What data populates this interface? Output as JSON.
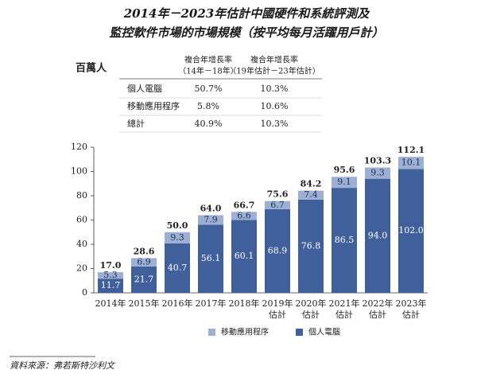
{
  "title": [
    "2014年－2023年估計中國硬件和系統評測及",
    "監控軟件市場的市場規模（按平均每月活躍用戶計）"
  ],
  "unit": "百萬人",
  "table": {
    "header": [
      [
        "複合年增長率",
        "（14年－18年）"
      ],
      [
        "複合年增長率",
        "（19年估計－23年估計）"
      ]
    ],
    "rows": [
      [
        "個人電腦",
        "50.7%",
        "10.3%"
      ],
      [
        "移動應用程序",
        "5.8%",
        "10.6%"
      ],
      [
        "總計",
        "40.9%",
        "10.3%"
      ]
    ]
  },
  "chart_data": {
    "type": "stacked_bar",
    "categories": [
      "2014年",
      "2015年",
      "2016年",
      "2017年",
      "2018年",
      "2019年\n估計",
      "2020年\n估計",
      "2021年\n估計",
      "2022年\n估計",
      "2023年\n估計"
    ],
    "series": [
      {
        "name": "個人電腦",
        "color": "#40609c",
        "values": [
          11.7,
          21.7,
          40.7,
          56.1,
          60.1,
          68.9,
          76.8,
          86.5,
          94.0,
          102.0
        ],
        "value_labels": [
          "11.7",
          "21.7",
          "40.7",
          "56.1",
          "60.1",
          "68.9",
          "76.8",
          "86.5",
          "94.0",
          "102.0"
        ]
      },
      {
        "name": "移動應用程序",
        "color": "#9db0d3",
        "values": [
          5.3,
          6.9,
          9.3,
          7.9,
          6.6,
          6.7,
          7.4,
          9.1,
          9.3,
          10.1
        ]
      }
    ],
    "totals": [
      17.0,
      28.6,
      50.0,
      64.0,
      66.7,
      75.6,
      84.2,
      95.6,
      103.3,
      112.1
    ],
    "totals_value_labels": [
      "17.0",
      "28.6",
      "50.0",
      "64.0",
      "66.7",
      "75.6",
      "84.2",
      "95.6",
      "103.3",
      "112.1"
    ],
    "ylim": [
      0,
      120
    ],
    "yticks": [
      0,
      20,
      40,
      60,
      80,
      100,
      120
    ],
    "grid": false
  },
  "source": "資料來源：弗若斯特沙利文"
}
